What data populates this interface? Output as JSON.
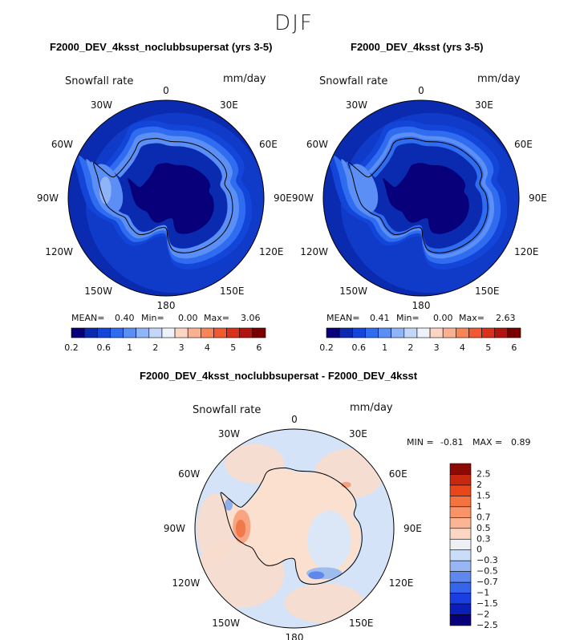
{
  "figure": {
    "title": "DJF"
  },
  "colors": {
    "abs_scale": [
      "#08007a",
      "#0a2bb0",
      "#1346d8",
      "#2f6cf0",
      "#5b8ff5",
      "#8fb4f7",
      "#c2d7fa",
      "#eef3fb",
      "#fcd5c4",
      "#fbb190",
      "#f78558",
      "#ef5a30",
      "#d8321c",
      "#b0160e",
      "#7a0000"
    ],
    "diff_scale": [
      "#08007a",
      "#0b1fb8",
      "#1a3ee0",
      "#3465ea",
      "#5e88ee",
      "#97b6f3",
      "#c9dcf8",
      "#eef0f4",
      "#fbd6c2",
      "#fbb595",
      "#f99468",
      "#f5733f",
      "#e8471c",
      "#c82710",
      "#8c0a04"
    ]
  },
  "chart_data": [
    {
      "type": "heatmap",
      "projection": "south-polar-stereographic",
      "title": "F2000_DEV_4ksst_noclubbsupersat (yrs 3-5)",
      "field_label": "Snowfall rate",
      "units": "mm/day",
      "lon_labels": [
        "0",
        "30E",
        "60E",
        "90E",
        "120E",
        "150E",
        "180",
        "150W",
        "120W",
        "90W",
        "60W",
        "30W"
      ],
      "stats": {
        "mean_label": "MEAN=",
        "mean": "0.40",
        "min_label": "Min=",
        "min": "0.00",
        "max_label": "Max=",
        "max": "3.06"
      },
      "colorbar_ticks": [
        "0.2",
        "0.6",
        "1",
        "2",
        "3",
        "4",
        "5",
        "6"
      ],
      "colorbar_levels": 15,
      "field": {
        "coast": 0.25,
        "ring": 1.9,
        "ocean": 0.55,
        "peninsula": 2.3,
        "interior": 0.05
      }
    },
    {
      "type": "heatmap",
      "projection": "south-polar-stereographic",
      "title": "F2000_DEV_4ksst (yrs 3-5)",
      "field_label": "Snowfall rate",
      "units": "mm/day",
      "lon_labels": [
        "0",
        "30E",
        "60E",
        "90E",
        "120E",
        "150E",
        "180",
        "150W",
        "120W",
        "90W",
        "60W",
        "30W"
      ],
      "stats": {
        "mean_label": "MEAN=",
        "mean": "0.41",
        "min_label": "Min=",
        "min": "0.00",
        "max_label": "Max=",
        "max": "2.63"
      },
      "colorbar_ticks": [
        "0.2",
        "0.6",
        "1",
        "2",
        "3",
        "4",
        "5",
        "6"
      ],
      "colorbar_levels": 15,
      "field": {
        "coast": 0.25,
        "ring": 1.8,
        "ocean": 0.6,
        "peninsula": 2.0,
        "interior": 0.05
      }
    },
    {
      "type": "heatmap",
      "projection": "south-polar-stereographic",
      "title": "F2000_DEV_4ksst_noclubbsupersat - F2000_DEV_4ksst",
      "field_label": "Snowfall rate",
      "units": "mm/day",
      "lon_labels": [
        "0",
        "30E",
        "60E",
        "90E",
        "120E",
        "150E",
        "180",
        "150W",
        "120W",
        "90W",
        "60W",
        "30W"
      ],
      "stats": {
        "min_label": "MIN =",
        "min": "-0.81",
        "max_label": "MAX =",
        "max": "0.89"
      },
      "colorbar_ticks": [
        "2.5",
        "2",
        "1.5",
        "1",
        "0.7",
        "0.5",
        "0.3",
        "0",
        "−0.3",
        "−0.5",
        "−0.7",
        "−1",
        "−1.5",
        "−2",
        "−2.5"
      ],
      "colorbar_levels": 15
    }
  ]
}
